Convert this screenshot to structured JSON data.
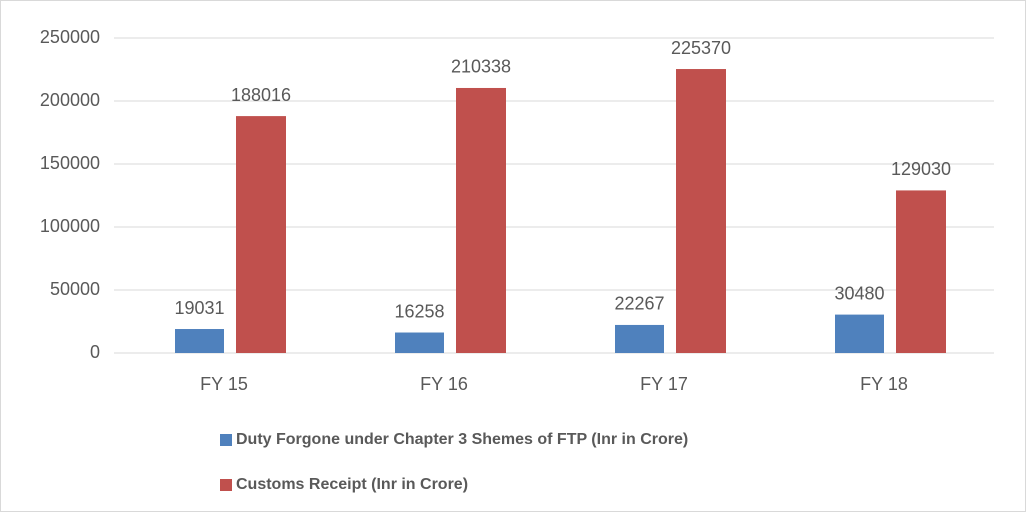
{
  "chart_data": {
    "type": "bar",
    "categories": [
      "FY 15",
      "FY 16",
      "FY 17",
      "FY 18"
    ],
    "series": [
      {
        "name": "Duty Forgone under Chapter 3 Shemes of FTP (Inr in Crore)",
        "color": "#4f81bd",
        "values": [
          19031,
          16258,
          22267,
          30480
        ]
      },
      {
        "name": "Customs Receipt (Inr in Crore)",
        "color": "#c0504d",
        "values": [
          188016,
          210338,
          225370,
          129030
        ]
      }
    ],
    "ylim": [
      0,
      250000
    ],
    "yticks": [
      0,
      50000,
      100000,
      150000,
      200000,
      250000
    ],
    "grid": true,
    "legend": "bottom"
  }
}
